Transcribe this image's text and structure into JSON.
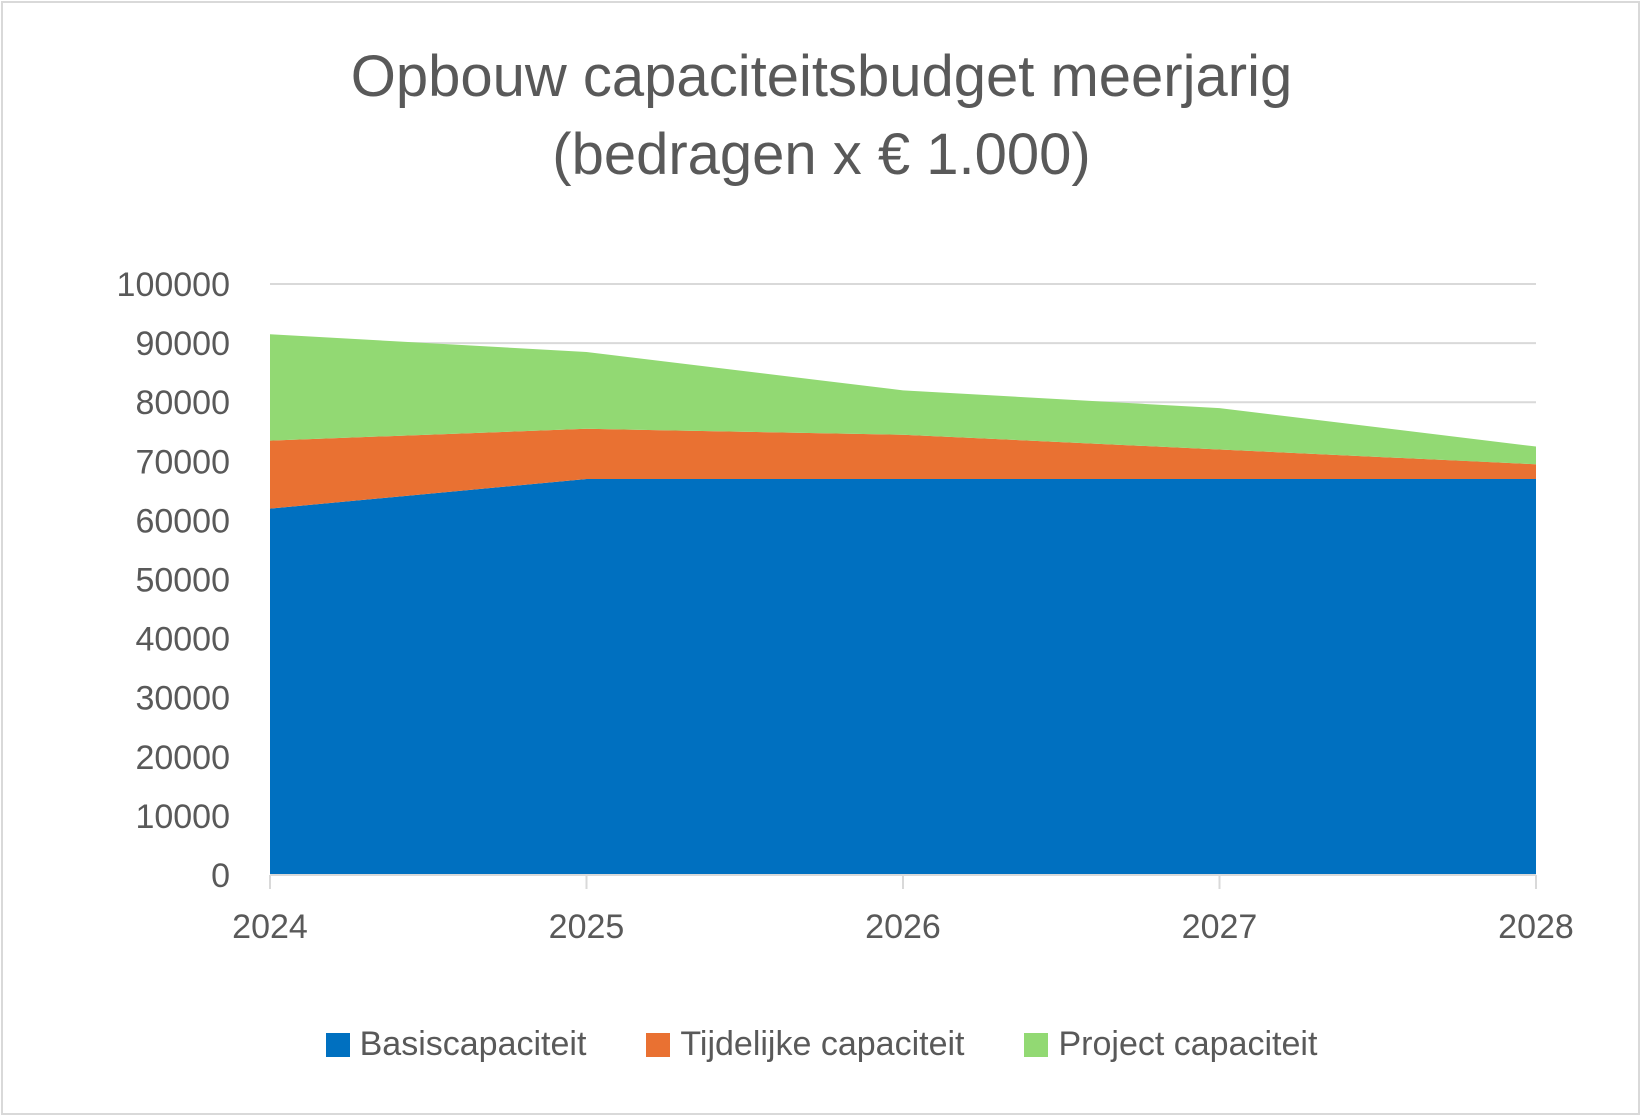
{
  "chart_data": {
    "type": "area",
    "stacked": true,
    "title": "Opbouw capaciteitsbudget meerjarig",
    "subtitle": "(bedragen x € 1.000)",
    "categories": [
      "2024",
      "2025",
      "2026",
      "2027",
      "2028"
    ],
    "series": [
      {
        "name": "Basiscapaciteit",
        "color": "#0070C0",
        "values": [
          62000,
          67000,
          67000,
          67000,
          67000
        ]
      },
      {
        "name": "Tijdelijke capaciteit",
        "color": "#E97132",
        "values": [
          11500,
          8500,
          7500,
          5000,
          2500
        ]
      },
      {
        "name": "Project capaciteit",
        "color": "#92D973",
        "values": [
          18000,
          13000,
          7500,
          7000,
          3000
        ]
      }
    ],
    "ylim": [
      0,
      100000
    ],
    "yticks": [
      "0",
      "10000",
      "20000",
      "30000",
      "40000",
      "50000",
      "60000",
      "70000",
      "80000",
      "90000",
      "100000"
    ],
    "grid": true,
    "legend": "bottom"
  }
}
